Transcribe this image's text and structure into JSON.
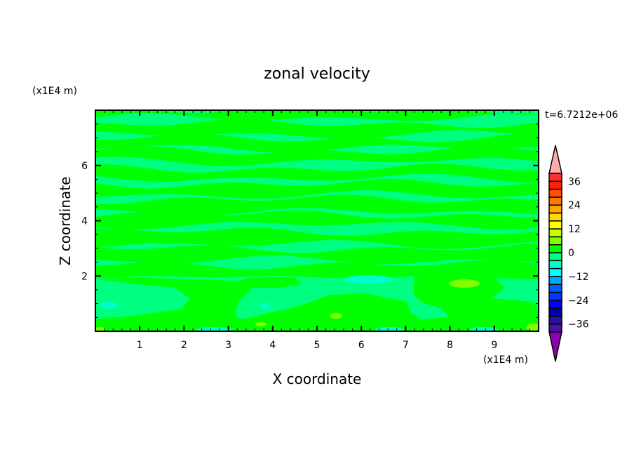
{
  "chart_data": {
    "type": "heatmap",
    "subtype": "filled-contour",
    "title": "zonal velocity",
    "xlabel": "X coordinate",
    "ylabel": "Z coordinate",
    "x_unit_label": "(x1E4 m)",
    "y_unit_label": "(x1E4 m)",
    "time_label": "t=6.7212e+06",
    "xlim": [
      0,
      10
    ],
    "ylim": [
      0,
      8
    ],
    "x_ticks": [
      1,
      2,
      3,
      4,
      5,
      6,
      7,
      8,
      9
    ],
    "x_tick_labels": [
      "1",
      "2",
      "3",
      "4",
      "5",
      "6",
      "7",
      "8",
      "9"
    ],
    "y_ticks": [
      2,
      4,
      6
    ],
    "y_tick_labels": [
      "2",
      "4",
      "6"
    ],
    "colorbar": {
      "levels": [
        -40,
        -36,
        -32,
        -28,
        -24,
        -20,
        -16,
        -12,
        -8,
        -4,
        0,
        4,
        8,
        12,
        16,
        20,
        24,
        28,
        32,
        36,
        40
      ],
      "tick_values": [
        36,
        24,
        12,
        0,
        -12,
        -24,
        -36
      ],
      "tick_labels": [
        "36",
        "24",
        "12",
        "0",
        "−12",
        "−24",
        "−36"
      ],
      "colors": [
        "#4a10a8",
        "#2a10a0",
        "#0000a8",
        "#0000ff",
        "#0038ff",
        "#0060ff",
        "#00a8ff",
        "#00ffff",
        "#00ffc8",
        "#00ff80",
        "#00ff00",
        "#80ff00",
        "#c8ff00",
        "#ffff00",
        "#ffd800",
        "#ffa800",
        "#ff7800",
        "#ff5000",
        "#ff2000",
        "#ff3030"
      ],
      "over_color": "#ffaaaa",
      "under_color": "#9000b0"
    },
    "visible_value_ranges": [
      "-8 to -4",
      "-4 to 0",
      "0 to 4",
      "4 to 8"
    ]
  }
}
